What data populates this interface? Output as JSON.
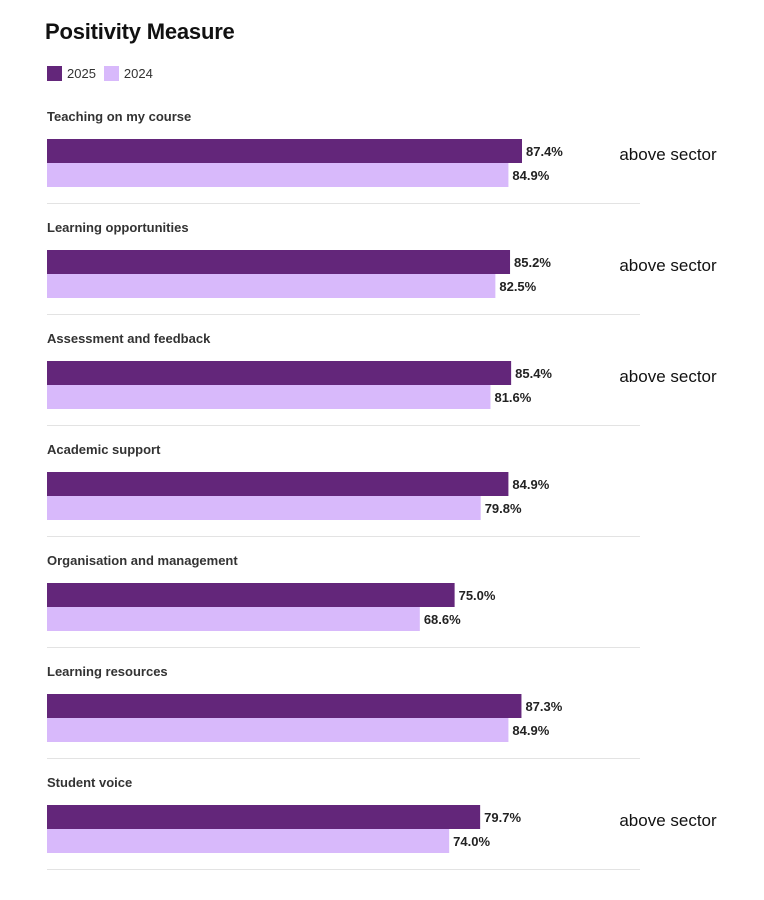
{
  "chart_data": {
    "type": "bar",
    "orientation": "horizontal",
    "title": "Positivity Measure",
    "legend_position": "top-left",
    "xlim": [
      0,
      100
    ],
    "categories": [
      "Teaching on my course",
      "Learning opportunities",
      "Assessment and feedback",
      "Academic support",
      "Organisation and management",
      "Learning resources",
      "Student voice"
    ],
    "series": [
      {
        "name": "2025",
        "color": "#63267a",
        "values": [
          87.4,
          85.2,
          85.4,
          84.9,
          75.0,
          87.3,
          79.7
        ],
        "labels": [
          "87.4%",
          "85.2%",
          "85.4%",
          "84.9%",
          "75.0%",
          "87.3%",
          "79.7%"
        ]
      },
      {
        "name": "2024",
        "color": "#d8b9fb",
        "values": [
          84.9,
          82.5,
          81.6,
          79.8,
          68.6,
          84.9,
          74.0
        ],
        "labels": [
          "84.9%",
          "82.5%",
          "81.6%",
          "79.8%",
          "68.6%",
          "84.9%",
          "74.0%"
        ]
      }
    ],
    "annotations": [
      "above sector",
      "above sector",
      "above sector",
      "",
      "",
      "",
      "above sector"
    ]
  }
}
